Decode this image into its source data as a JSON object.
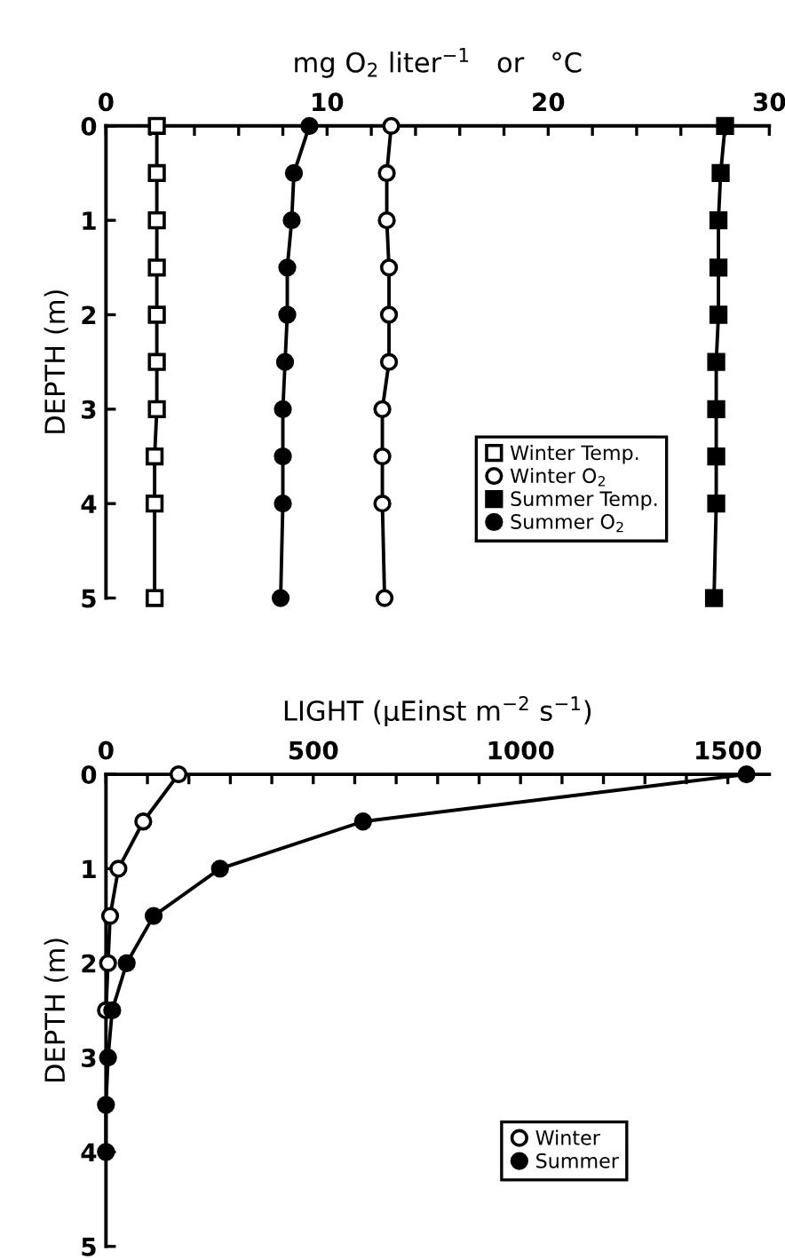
{
  "chart_data": [
    {
      "type": "line",
      "xlabel": "mg O$_{2}$ liter$^{−1}$   or   °C",
      "ylabel": "DEPTH (m)",
      "orientation": "horizontal",
      "xlim": [
        0,
        30
      ],
      "ylim": [
        5,
        0
      ],
      "xticks": [
        0,
        {
          "value": 2,
          "label": null
        },
        {
          "value": 4,
          "label": null
        },
        {
          "value": 6,
          "label": null
        },
        {
          "value": 8,
          "label": null
        },
        10,
        {
          "value": 12,
          "label": null
        },
        {
          "value": 14,
          "label": null
        },
        {
          "value": 16,
          "label": null
        },
        {
          "value": 18,
          "label": null
        },
        20,
        {
          "value": 22,
          "label": null
        },
        {
          "value": 24,
          "label": null
        },
        {
          "value": 26,
          "label": null
        },
        {
          "value": 28,
          "label": null
        },
        30
      ],
      "yticks": [
        0,
        1,
        2,
        3,
        4,
        5
      ],
      "legend": "bottom right",
      "grid": false,
      "line_style": "solid",
      "x": [
        0,
        0.5,
        1,
        1.5,
        2,
        2.5,
        3,
        3.5,
        4,
        5
      ],
      "series": [
        {
          "name": "Winter Temp.",
          "color": "#000000",
          "marker": "square",
          "values": [
            2.3,
            2.3,
            2.3,
            2.3,
            2.3,
            2.3,
            2.3,
            2.2,
            2.2,
            2.2
          ]
        },
        {
          "name": "Winter O$_{2}$",
          "color": "#000000",
          "marker": "circle",
          "values": [
            12.9,
            12.7,
            12.7,
            12.8,
            12.8,
            12.8,
            12.5,
            12.5,
            12.5,
            12.6
          ]
        },
        {
          "name": "Summer Temp.",
          "color": "#000000",
          "marker": "square",
          "values": [
            28.0,
            27.8,
            27.7,
            27.7,
            27.7,
            27.6,
            27.6,
            27.6,
            27.6,
            27.5
          ]
        },
        {
          "name": "Summer O$_{2}$",
          "color": "#000000",
          "marker": "circle",
          "values": [
            9.2,
            8.5,
            8.4,
            8.2,
            8.2,
            8.1,
            8.0,
            8.0,
            8.0,
            7.9
          ]
        }
      ]
    },
    {
      "type": "line",
      "xlabel": "LIGHT (μEinst m$^{−2}$ s$^{−1}$)",
      "ylabel": "DEPTH (m)",
      "orientation": "horizontal",
      "xlim": [
        0,
        1600
      ],
      "ylim": [
        5,
        0
      ],
      "xticks": [
        0,
        {
          "value": 100,
          "label": null
        },
        {
          "value": 200,
          "label": null
        },
        {
          "value": 300,
          "label": null
        },
        {
          "value": 400,
          "label": null
        },
        500,
        {
          "value": 600,
          "label": null
        },
        {
          "value": 700,
          "label": null
        },
        {
          "value": 800,
          "label": null
        },
        {
          "value": 900,
          "label": null
        },
        1000,
        {
          "value": 1100,
          "label": null
        },
        {
          "value": 1200,
          "label": null
        },
        {
          "value": 1300,
          "label": null
        },
        {
          "value": 1400,
          "label": null
        },
        1500
      ],
      "yticks": [
        0,
        1,
        2,
        3,
        4,
        5
      ],
      "legend": "bottom right",
      "grid": false,
      "line_style": "solid",
      "series": [
        {
          "name": "Winter",
          "color": "#000000",
          "marker": "circle",
          "x": [
            0,
            0.5,
            1,
            1.5,
            2,
            2.5
          ],
          "values": [
            175,
            90,
            30,
            10,
            5,
            0
          ]
        },
        {
          "name": "Summer",
          "color": "#000000",
          "marker": "circle",
          "x": [
            0,
            0.5,
            1,
            1.5,
            2,
            2.5,
            3,
            3.5,
            4
          ],
          "values": [
            1545,
            620,
            275,
            115,
            50,
            15,
            5,
            0,
            0
          ]
        }
      ]
    }
  ]
}
